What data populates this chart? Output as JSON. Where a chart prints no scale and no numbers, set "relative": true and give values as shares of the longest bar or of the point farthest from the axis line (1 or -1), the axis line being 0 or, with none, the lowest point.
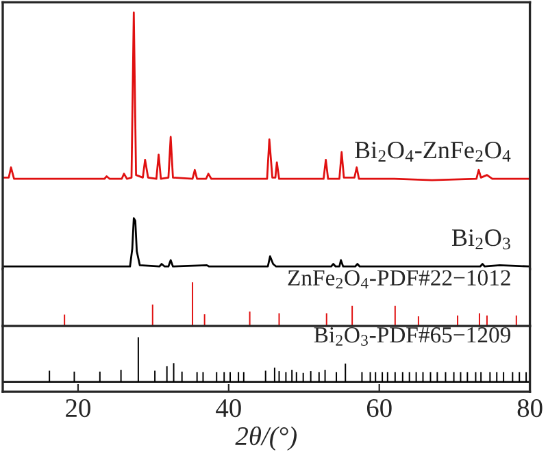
{
  "chart_data": [
    {
      "type": "line",
      "relative": true,
      "xlim": [
        10,
        80
      ],
      "tick_labels": false,
      "annotations": [
        "Bi$_{2}$O$_{4}$-ZnFe$_{2}$O$_{4}$",
        "Bi$_{2}$O$_{3}$"
      ],
      "series": [
        {
          "color": "#e01010",
          "x": [
            10,
            10.8,
            11.1,
            11.5,
            16,
            20,
            23.5,
            23.8,
            24.2,
            25.8,
            26.1,
            26.5,
            27.1,
            27.4,
            27.7,
            28.6,
            28.9,
            29.3,
            30.4,
            30.7,
            31.0,
            32.0,
            32.3,
            32.6,
            35.2,
            35.5,
            35.8,
            37.0,
            37.3,
            37.7,
            45.1,
            45.4,
            45.8,
            46.2,
            46.4,
            46.7,
            52.6,
            52.9,
            53.2,
            54.7,
            55.0,
            55.3,
            56.7,
            57.0,
            57.3,
            62,
            67,
            72.9,
            73.2,
            73.5,
            74.3,
            75,
            80
          ],
          "values": [
            0.35,
            0.35,
            0.39,
            0.345,
            0.345,
            0.345,
            0.345,
            0.355,
            0.345,
            0.345,
            0.365,
            0.345,
            0.35,
            1,
            0.36,
            0.35,
            0.42,
            0.35,
            0.345,
            0.44,
            0.345,
            0.35,
            0.51,
            0.35,
            0.345,
            0.38,
            0.345,
            0.345,
            0.365,
            0.345,
            0.345,
            0.5,
            0.35,
            0.35,
            0.41,
            0.345,
            0.345,
            0.42,
            0.345,
            0.345,
            0.45,
            0.35,
            0.35,
            0.39,
            0.345,
            0.345,
            0.34,
            0.345,
            0.38,
            0.35,
            0.36,
            0.345,
            0.345
          ]
        },
        {
          "color": "#000000",
          "x": [
            10,
            20,
            26.9,
            27.2,
            27.4,
            27.6,
            27.8,
            28.2,
            30.8,
            31.1,
            31.5,
            32.0,
            32.3,
            32.6,
            37.1,
            37.4,
            45.2,
            45.5,
            45.9,
            46.3,
            53.6,
            53.9,
            54.2,
            54.7,
            54.9,
            55.2,
            56.8,
            57.1,
            57.4,
            73.4,
            73.7,
            74.0,
            76,
            80
          ],
          "values": [
            0,
            0,
            0,
            0.07,
            0.19,
            0.18,
            0.06,
            0.005,
            0,
            0.01,
            0,
            0,
            0.025,
            0,
            0.005,
            0,
            0,
            0.04,
            0.01,
            0,
            0,
            0.01,
            0,
            0,
            0.025,
            0,
            0,
            0.01,
            0,
            0,
            0.01,
            0,
            0.005,
            0
          ]
        }
      ]
    },
    {
      "type": "bar",
      "relative": true,
      "xlim": [
        10,
        80
      ],
      "tick_labels": false,
      "color": "#e01010",
      "annotations": [
        "ZnFe$_{2}$O$_{4}$-PDF#22−1012"
      ],
      "x": [
        18.2,
        29.9,
        35.2,
        36.8,
        42.8,
        46.7,
        53.0,
        56.4,
        62.1,
        65.2,
        70.4,
        73.3,
        74.3,
        78.2
      ],
      "values": [
        0.26,
        0.49,
        1,
        0.27,
        0.33,
        0.29,
        0.29,
        0.46,
        0.46,
        0.22,
        0.24,
        0.29,
        0.24,
        0.24
      ]
    },
    {
      "type": "bar",
      "relative": true,
      "xlim": [
        10,
        80
      ],
      "xticks": [
        20,
        40,
        60,
        80
      ],
      "xlabel": "2θ/(°)",
      "color": "#000000",
      "annotations": [
        "Bi$_{2}$O$_{3}$-PDF#65−1209"
      ],
      "x": [
        16.2,
        19.5,
        22.9,
        25.7,
        28.0,
        30.2,
        31.8,
        32.7,
        33.8,
        35.8,
        36.6,
        38.4,
        39.4,
        40.2,
        41.3,
        42.0,
        44.9,
        46.1,
        46.7,
        47.6,
        48.4,
        49.0,
        49.9,
        50.9,
        52.0,
        52.8,
        54.3,
        55.5,
        57.7,
        58.8,
        59.5,
        60.4,
        61.1,
        62.1,
        63.1,
        64.0,
        64.9,
        65.8,
        66.8,
        67.7,
        68.8,
        69.9,
        70.8,
        71.7,
        72.8,
        73.5,
        74.7,
        75.6,
        76.5,
        77.7,
        78.6,
        79.5
      ],
      "values": [
        0.25,
        0.23,
        0.23,
        0.27,
        1,
        0.25,
        0.35,
        0.42,
        0.23,
        0.22,
        0.22,
        0.22,
        0.22,
        0.22,
        0.22,
        0.22,
        0.25,
        0.32,
        0.24,
        0.22,
        0.27,
        0.22,
        0.2,
        0.24,
        0.22,
        0.27,
        0.22,
        0.41,
        0.22,
        0.22,
        0.22,
        0.22,
        0.22,
        0.22,
        0.22,
        0.22,
        0.22,
        0.22,
        0.22,
        0.22,
        0.22,
        0.22,
        0.22,
        0.22,
        0.22,
        0.22,
        0.22,
        0.22,
        0.22,
        0.22,
        0.22,
        0.22
      ]
    }
  ]
}
